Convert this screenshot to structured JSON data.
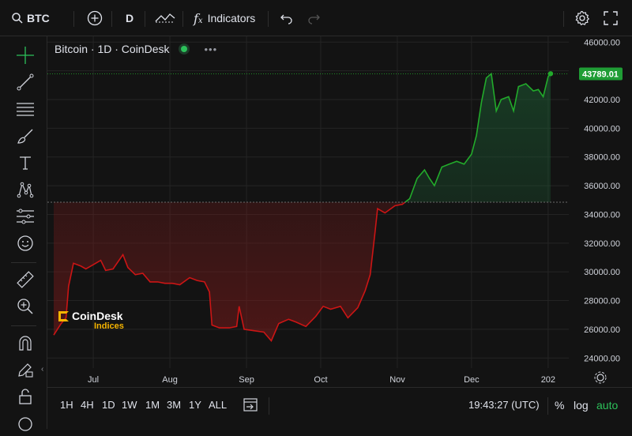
{
  "toolbar": {
    "symbol": "BTC",
    "interval": "D",
    "indicators_label": "Indicators"
  },
  "legend": {
    "title": "Bitcoin · 1D · CoinDesk"
  },
  "watermark": {
    "line1": "CoinDesk",
    "line2": "Indices"
  },
  "price_label": "43789.01",
  "bottom": {
    "ranges": [
      "1H",
      "4H",
      "1D",
      "1W",
      "1M",
      "3M",
      "1Y",
      "ALL"
    ],
    "clock": "19:43:27 (UTC)",
    "percent": "%",
    "log": "log",
    "auto": "auto"
  },
  "colors": {
    "background": "#131313",
    "up": "#22ab2b",
    "down": "#cc1515",
    "last_price_tag": "#1f9d35",
    "auto_text": "#2cc15a"
  },
  "chart_data": {
    "type": "line",
    "title": "Bitcoin · 1D · CoinDesk",
    "xlabel": "",
    "ylabel": "",
    "x_ticks": [
      "Jul",
      "Aug",
      "Sep",
      "Oct",
      "Nov",
      "Dec",
      "202"
    ],
    "y_ticks": [
      24000,
      26000,
      28000,
      30000,
      32000,
      34000,
      36000,
      38000,
      40000,
      42000,
      44000,
      46000
    ],
    "ylim": [
      23300,
      46400
    ],
    "baseline": 34850,
    "last_value": 43789.01,
    "grid": true,
    "series": [
      {
        "name": "",
        "x": [
          "2023-06-15",
          "2023-06-18",
          "2023-06-20",
          "2023-06-21",
          "2023-06-23",
          "2023-06-26",
          "2023-06-28",
          "2023-07-01",
          "2023-07-04",
          "2023-07-06",
          "2023-07-09",
          "2023-07-13",
          "2023-07-15",
          "2023-07-18",
          "2023-07-21",
          "2023-07-24",
          "2023-07-27",
          "2023-07-30",
          "2023-08-02",
          "2023-08-05",
          "2023-08-09",
          "2023-08-12",
          "2023-08-15",
          "2023-08-17",
          "2023-08-18",
          "2023-08-21",
          "2023-08-25",
          "2023-08-28",
          "2023-08-29",
          "2023-08-31",
          "2023-09-04",
          "2023-09-08",
          "2023-09-11",
          "2023-09-14",
          "2023-09-18",
          "2023-09-21",
          "2023-09-25",
          "2023-09-29",
          "2023-10-02",
          "2023-10-05",
          "2023-10-09",
          "2023-10-12",
          "2023-10-16",
          "2023-10-19",
          "2023-10-21",
          "2023-10-23",
          "2023-10-24",
          "2023-10-27",
          "2023-10-31",
          "2023-11-03",
          "2023-11-06",
          "2023-11-09",
          "2023-11-12",
          "2023-11-14",
          "2023-11-16",
          "2023-11-19",
          "2023-11-22",
          "2023-11-25",
          "2023-11-28",
          "2023-12-01",
          "2023-12-03",
          "2023-12-05",
          "2023-12-07",
          "2023-12-09",
          "2023-12-11",
          "2023-12-13",
          "2023-12-16",
          "2023-12-18",
          "2023-12-20",
          "2023-12-23",
          "2023-12-26",
          "2023-12-28",
          "2023-12-30",
          "2024-01-01",
          "2024-01-02"
        ],
        "values": [
          25600,
          26400,
          26800,
          29000,
          30600,
          30400,
          30200,
          30500,
          30800,
          30100,
          30200,
          31200,
          30300,
          29800,
          29900,
          29300,
          29300,
          29200,
          29200,
          29100,
          29600,
          29400,
          29300,
          28600,
          26300,
          26100,
          26100,
          26200,
          27600,
          26000,
          25900,
          25800,
          25200,
          26400,
          26700,
          26500,
          26200,
          26900,
          27600,
          27400,
          27600,
          26800,
          27500,
          28700,
          29800,
          32800,
          34400,
          34100,
          34600,
          34700,
          35100,
          36500,
          37100,
          36500,
          36000,
          37300,
          37500,
          37700,
          37500,
          38200,
          39500,
          41800,
          43500,
          43800,
          41200,
          42000,
          42200,
          41200,
          42900,
          43100,
          42600,
          42700,
          42200,
          43600,
          43800
        ]
      }
    ]
  }
}
